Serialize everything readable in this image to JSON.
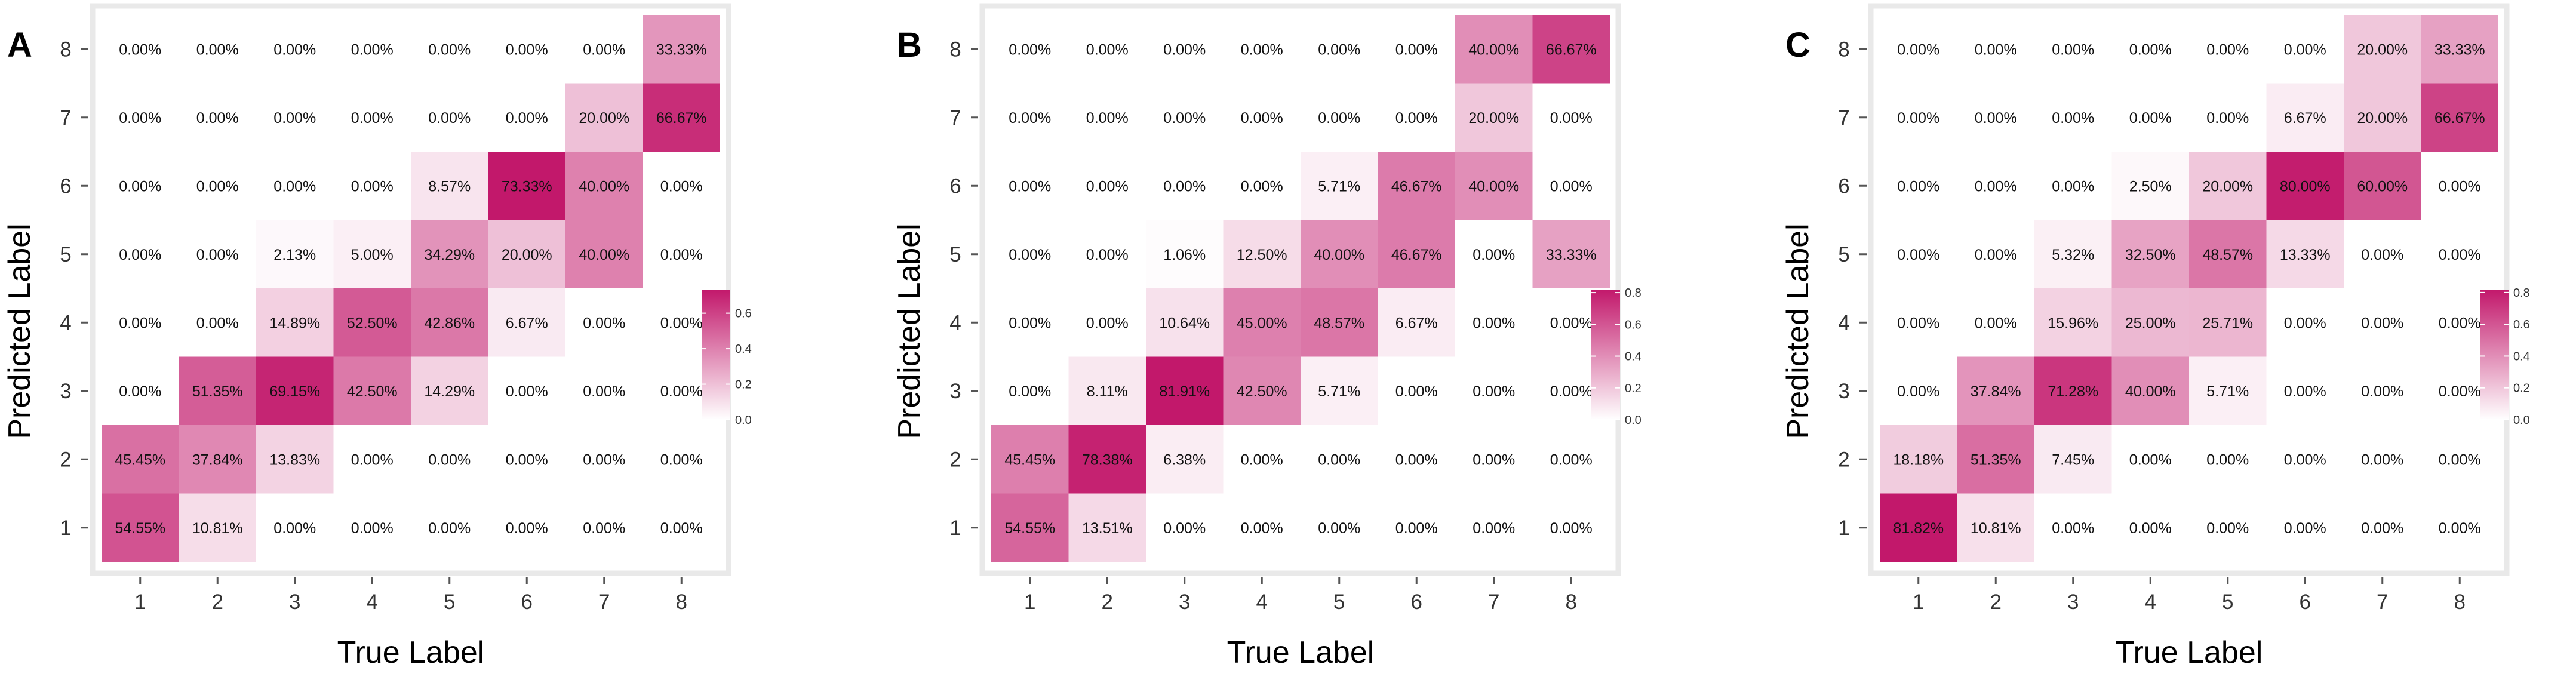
{
  "chart_data": [
    {
      "type": "heatmap",
      "panel_label": "A",
      "xlabel": "True Label",
      "ylabel": "Predicted Label",
      "x_categories": [
        "1",
        "2",
        "3",
        "4",
        "5",
        "6",
        "7",
        "8"
      ],
      "y_categories": [
        "1",
        "2",
        "3",
        "4",
        "5",
        "6",
        "7",
        "8"
      ],
      "value_range": [
        0,
        0.7333
      ],
      "colorbar_ticks": [
        "0.0",
        "0.2",
        "0.4",
        "0.6"
      ],
      "color_low": "#ffffff",
      "color_high": "#c2186b",
      "values": [
        [
          0.5455,
          0.1081,
          0.0,
          0.0,
          0.0,
          0.0,
          0.0,
          0.0
        ],
        [
          0.4545,
          0.3784,
          0.1383,
          0.0,
          0.0,
          0.0,
          0.0,
          0.0
        ],
        [
          0.0,
          0.5135,
          0.6915,
          0.425,
          0.1429,
          0.0,
          0.0,
          0.0
        ],
        [
          0.0,
          0.0,
          0.1489,
          0.525,
          0.4286,
          0.0667,
          0.0,
          0.0
        ],
        [
          0.0,
          0.0,
          0.0213,
          0.05,
          0.3429,
          0.2,
          0.4,
          0.0
        ],
        [
          0.0,
          0.0,
          0.0,
          0.0,
          0.0857,
          0.7333,
          0.4,
          0.0
        ],
        [
          0.0,
          0.0,
          0.0,
          0.0,
          0.0,
          0.0,
          0.2,
          0.6667
        ],
        [
          0.0,
          0.0,
          0.0,
          0.0,
          0.0,
          0.0,
          0.0,
          0.3333
        ]
      ],
      "cell_labels": [
        [
          "54.55%",
          "10.81%",
          "0.00%",
          "0.00%",
          "0.00%",
          "0.00%",
          "0.00%",
          "0.00%"
        ],
        [
          "45.45%",
          "37.84%",
          "13.83%",
          "0.00%",
          "0.00%",
          "0.00%",
          "0.00%",
          "0.00%"
        ],
        [
          "0.00%",
          "51.35%",
          "69.15%",
          "42.50%",
          "14.29%",
          "0.00%",
          "0.00%",
          "0.00%"
        ],
        [
          "0.00%",
          "0.00%",
          "14.89%",
          "52.50%",
          "42.86%",
          "6.67%",
          "0.00%",
          "0.00%"
        ],
        [
          "0.00%",
          "0.00%",
          "2.13%",
          "5.00%",
          "34.29%",
          "20.00%",
          "40.00%",
          "0.00%"
        ],
        [
          "0.00%",
          "0.00%",
          "0.00%",
          "0.00%",
          "8.57%",
          "73.33%",
          "40.00%",
          "0.00%"
        ],
        [
          "0.00%",
          "0.00%",
          "0.00%",
          "0.00%",
          "0.00%",
          "0.00%",
          "20.00%",
          "66.67%"
        ],
        [
          "0.00%",
          "0.00%",
          "0.00%",
          "0.00%",
          "0.00%",
          "0.00%",
          "0.00%",
          "33.33%"
        ]
      ]
    },
    {
      "type": "heatmap",
      "panel_label": "B",
      "xlabel": "True Label",
      "ylabel": "Predicted Label",
      "x_categories": [
        "1",
        "2",
        "3",
        "4",
        "5",
        "6",
        "7",
        "8"
      ],
      "y_categories": [
        "1",
        "2",
        "3",
        "4",
        "5",
        "6",
        "7",
        "8"
      ],
      "value_range": [
        0,
        0.8191
      ],
      "colorbar_ticks": [
        "0.0",
        "0.2",
        "0.4",
        "0.6",
        "0.8"
      ],
      "color_low": "#ffffff",
      "color_high": "#c2186b",
      "values": [
        [
          0.5455,
          0.1351,
          0.0,
          0.0,
          0.0,
          0.0,
          0.0,
          0.0
        ],
        [
          0.4545,
          0.7838,
          0.0638,
          0.0,
          0.0,
          0.0,
          0.0,
          0.0
        ],
        [
          0.0,
          0.0811,
          0.8191,
          0.425,
          0.0571,
          0.0,
          0.0,
          0.0
        ],
        [
          0.0,
          0.0,
          0.1064,
          0.45,
          0.4857,
          0.0667,
          0.0,
          0.0
        ],
        [
          0.0,
          0.0,
          0.0106,
          0.125,
          0.4,
          0.4667,
          0.0,
          0.3333
        ],
        [
          0.0,
          0.0,
          0.0,
          0.0,
          0.0571,
          0.4667,
          0.4,
          0.0
        ],
        [
          0.0,
          0.0,
          0.0,
          0.0,
          0.0,
          0.0,
          0.2,
          0.0
        ],
        [
          0.0,
          0.0,
          0.0,
          0.0,
          0.0,
          0.0,
          0.4,
          0.6667
        ]
      ],
      "cell_labels": [
        [
          "54.55%",
          "13.51%",
          "0.00%",
          "0.00%",
          "0.00%",
          "0.00%",
          "0.00%",
          "0.00%"
        ],
        [
          "45.45%",
          "78.38%",
          "6.38%",
          "0.00%",
          "0.00%",
          "0.00%",
          "0.00%",
          "0.00%"
        ],
        [
          "0.00%",
          "8.11%",
          "81.91%",
          "42.50%",
          "5.71%",
          "0.00%",
          "0.00%",
          "0.00%"
        ],
        [
          "0.00%",
          "0.00%",
          "10.64%",
          "45.00%",
          "48.57%",
          "6.67%",
          "0.00%",
          "0.00%"
        ],
        [
          "0.00%",
          "0.00%",
          "1.06%",
          "12.50%",
          "40.00%",
          "46.67%",
          "0.00%",
          "33.33%"
        ],
        [
          "0.00%",
          "0.00%",
          "0.00%",
          "0.00%",
          "5.71%",
          "46.67%",
          "40.00%",
          "0.00%"
        ],
        [
          "0.00%",
          "0.00%",
          "0.00%",
          "0.00%",
          "0.00%",
          "0.00%",
          "20.00%",
          "0.00%"
        ],
        [
          "0.00%",
          "0.00%",
          "0.00%",
          "0.00%",
          "0.00%",
          "0.00%",
          "40.00%",
          "66.67%"
        ]
      ]
    },
    {
      "type": "heatmap",
      "panel_label": "C",
      "xlabel": "True Label",
      "ylabel": "Predicted Label",
      "x_categories": [
        "1",
        "2",
        "3",
        "4",
        "5",
        "6",
        "7",
        "8"
      ],
      "y_categories": [
        "1",
        "2",
        "3",
        "4",
        "5",
        "6",
        "7",
        "8"
      ],
      "value_range": [
        0,
        0.8182
      ],
      "colorbar_ticks": [
        "0.0",
        "0.2",
        "0.4",
        "0.6",
        "0.8"
      ],
      "color_low": "#ffffff",
      "color_high": "#c2186b",
      "values": [
        [
          0.8182,
          0.1081,
          0.0,
          0.0,
          0.0,
          0.0,
          0.0,
          0.0
        ],
        [
          0.1818,
          0.5135,
          0.0745,
          0.0,
          0.0,
          0.0,
          0.0,
          0.0
        ],
        [
          0.0,
          0.3784,
          0.7128,
          0.4,
          0.0571,
          0.0,
          0.0,
          0.0
        ],
        [
          0.0,
          0.0,
          0.1596,
          0.25,
          0.2571,
          0.0,
          0.0,
          0.0
        ],
        [
          0.0,
          0.0,
          0.0532,
          0.325,
          0.4857,
          0.1333,
          0.0,
          0.0
        ],
        [
          0.0,
          0.0,
          0.0,
          0.025,
          0.2,
          0.8,
          0.6,
          0.0
        ],
        [
          0.0,
          0.0,
          0.0,
          0.0,
          0.0,
          0.0667,
          0.2,
          0.6667
        ],
        [
          0.0,
          0.0,
          0.0,
          0.0,
          0.0,
          0.0,
          0.2,
          0.3333
        ]
      ],
      "cell_labels": [
        [
          "81.82%",
          "10.81%",
          "0.00%",
          "0.00%",
          "0.00%",
          "0.00%",
          "0.00%",
          "0.00%"
        ],
        [
          "18.18%",
          "51.35%",
          "7.45%",
          "0.00%",
          "0.00%",
          "0.00%",
          "0.00%",
          "0.00%"
        ],
        [
          "0.00%",
          "37.84%",
          "71.28%",
          "40.00%",
          "5.71%",
          "0.00%",
          "0.00%",
          "0.00%"
        ],
        [
          "0.00%",
          "0.00%",
          "15.96%",
          "25.00%",
          "25.71%",
          "0.00%",
          "0.00%",
          "0.00%"
        ],
        [
          "0.00%",
          "0.00%",
          "5.32%",
          "32.50%",
          "48.57%",
          "13.33%",
          "0.00%",
          "0.00%"
        ],
        [
          "0.00%",
          "0.00%",
          "0.00%",
          "2.50%",
          "20.00%",
          "80.00%",
          "60.00%",
          "0.00%"
        ],
        [
          "0.00%",
          "0.00%",
          "0.00%",
          "0.00%",
          "0.00%",
          "6.67%",
          "20.00%",
          "66.67%"
        ],
        [
          "0.00%",
          "0.00%",
          "0.00%",
          "0.00%",
          "0.00%",
          "0.00%",
          "20.00%",
          "33.33%"
        ]
      ]
    }
  ]
}
